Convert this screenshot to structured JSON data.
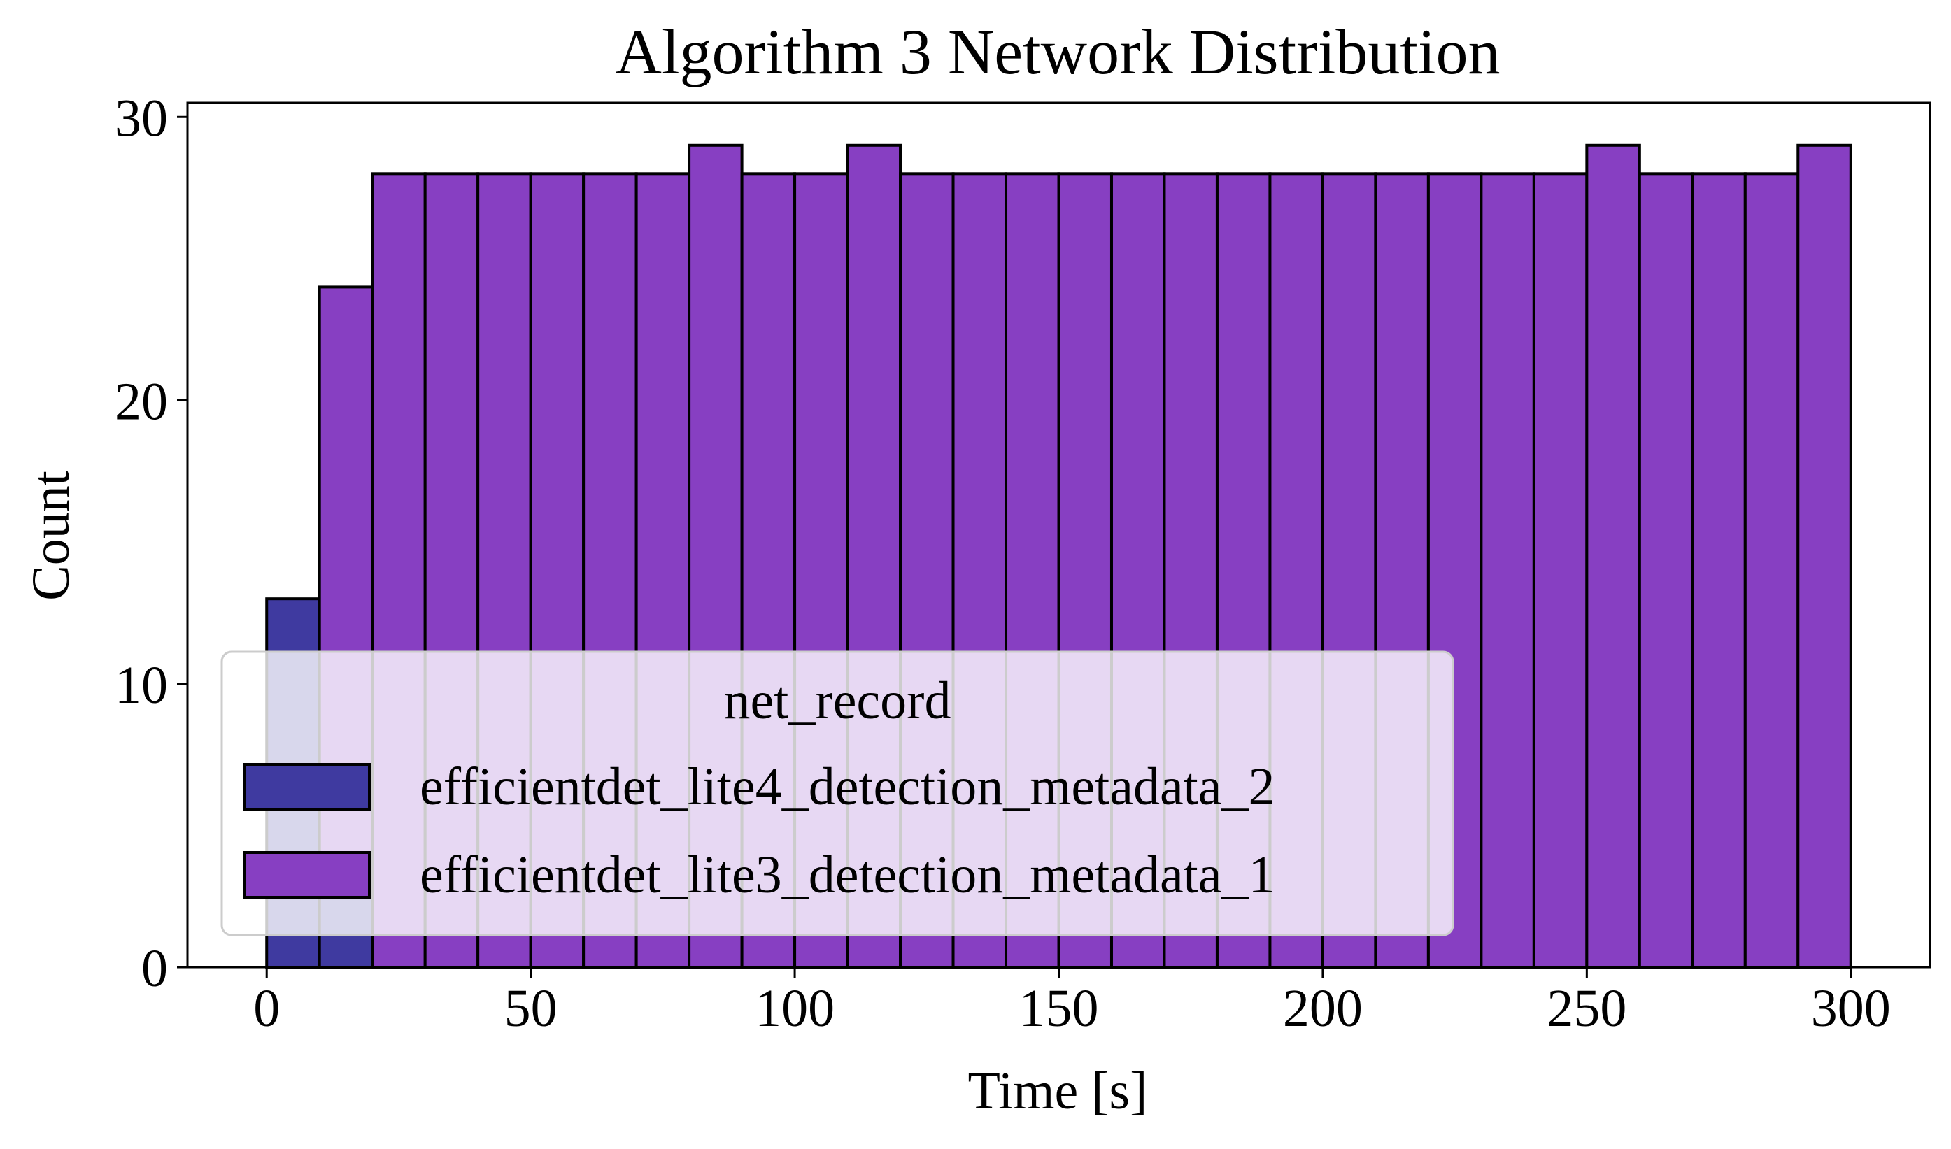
{
  "chart_data": {
    "type": "bar",
    "title": "Algorithm 3 Network Distribution",
    "xlabel": "Time [s]",
    "ylabel": "Count",
    "xlim": [
      -15,
      315
    ],
    "ylim": [
      0,
      30.5
    ],
    "xticks": [
      0,
      50,
      100,
      150,
      200,
      250,
      300
    ],
    "yticks": [
      0,
      10,
      20,
      30
    ],
    "grid": false,
    "bin_width": 10,
    "bin_starts": [
      0,
      10,
      20,
      30,
      40,
      50,
      60,
      70,
      80,
      90,
      100,
      110,
      120,
      130,
      140,
      150,
      160,
      170,
      180,
      190,
      200,
      210,
      220,
      230,
      240,
      250,
      260,
      270,
      280,
      290
    ],
    "series": [
      {
        "name": "efficientdet_lite4_detection_metadata_2",
        "color": "#3f3aa0",
        "values": [
          13,
          4,
          0,
          0,
          0,
          0,
          0,
          0,
          0,
          0,
          0,
          0,
          0,
          0,
          0,
          0,
          0,
          0,
          0,
          0,
          0,
          0,
          0,
          0,
          0,
          0,
          0,
          0,
          0,
          0
        ]
      },
      {
        "name": "efficientdet_lite3_detection_metadata_1",
        "color": "#873fc2",
        "values": [
          0,
          20,
          28,
          28,
          28,
          28,
          28,
          28,
          29,
          28,
          28,
          29,
          28,
          28,
          28,
          28,
          28,
          28,
          28,
          28,
          28,
          28,
          28,
          28,
          28,
          29,
          28,
          28,
          28,
          29
        ]
      }
    ],
    "stacked": true,
    "legend": {
      "title": "net_record",
      "placement": "lower-left"
    }
  }
}
